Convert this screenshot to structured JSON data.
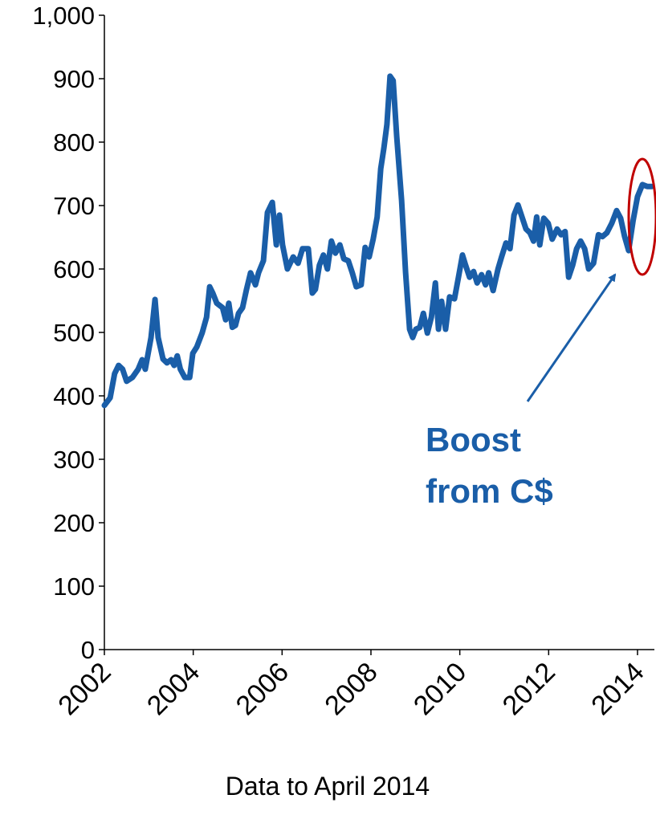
{
  "chart_data": {
    "type": "line",
    "x_label": "Data to April 2014",
    "annotation": [
      "Boost",
      "from C$"
    ],
    "xlim": [
      2002,
      2014.38
    ],
    "xticks": [
      2002,
      2004,
      2006,
      2008,
      2010,
      2012,
      2014
    ],
    "ylim": [
      0,
      1000
    ],
    "yticks": [
      0,
      100,
      200,
      300,
      400,
      500,
      600,
      700,
      800,
      900,
      {
        "value": 1000,
        "label": "1,000"
      }
    ],
    "grid": false,
    "series": [
      {
        "color": "#1a5ea8",
        "x": [
          2002.0,
          2002.13,
          2002.23,
          2002.32,
          2002.41,
          2002.5,
          2002.63,
          2002.76,
          2002.85,
          2002.92,
          2003.05,
          2003.14,
          2003.21,
          2003.32,
          2003.41,
          2003.5,
          2003.57,
          2003.64,
          2003.71,
          2003.81,
          2003.92,
          2003.99,
          2004.08,
          2004.2,
          2004.3,
          2004.37,
          2004.44,
          2004.53,
          2004.66,
          2004.73,
          2004.8,
          2004.88,
          2004.95,
          2005.02,
          2005.11,
          2005.2,
          2005.29,
          2005.4,
          2005.47,
          2005.58,
          2005.67,
          2005.78,
          2005.87,
          2005.94,
          2006.01,
          2006.12,
          2006.25,
          2006.36,
          2006.46,
          2006.59,
          2006.68,
          2006.75,
          2006.84,
          2006.93,
          2007.02,
          2007.11,
          2007.2,
          2007.3,
          2007.39,
          2007.49,
          2007.58,
          2007.67,
          2007.78,
          2007.87,
          2007.96,
          2008.05,
          2008.14,
          2008.22,
          2008.29,
          2008.36,
          2008.43,
          2008.5,
          2008.58,
          2008.69,
          2008.78,
          2008.87,
          2008.94,
          2009.01,
          2009.1,
          2009.18,
          2009.27,
          2009.36,
          2009.45,
          2009.52,
          2009.59,
          2009.68,
          2009.77,
          2009.88,
          2009.97,
          2010.06,
          2010.13,
          2010.22,
          2010.31,
          2010.39,
          2010.49,
          2010.58,
          2010.65,
          2010.75,
          2010.86,
          2010.94,
          2011.04,
          2011.13,
          2011.22,
          2011.31,
          2011.4,
          2011.49,
          2011.58,
          2011.66,
          2011.73,
          2011.8,
          2011.89,
          2011.99,
          2012.08,
          2012.19,
          2012.28,
          2012.37,
          2012.45,
          2012.54,
          2012.63,
          2012.72,
          2012.81,
          2012.9,
          2013.01,
          2013.12,
          2013.21,
          2013.31,
          2013.42,
          2013.53,
          2013.62,
          2013.71,
          2013.8,
          2013.9,
          2014.0,
          2014.11,
          2014.22,
          2014.32
        ],
        "values": [
          385,
          397,
          435,
          448,
          442,
          423,
          429,
          442,
          457,
          442,
          492,
          552,
          492,
          458,
          452,
          457,
          448,
          463,
          442,
          429,
          429,
          467,
          477,
          499,
          524,
          572,
          562,
          546,
          539,
          520,
          546,
          508,
          511,
          530,
          539,
          568,
          594,
          575,
          594,
          613,
          689,
          705,
          638,
          685,
          638,
          600,
          619,
          609,
          632,
          632,
          562,
          568,
          606,
          622,
          600,
          644,
          625,
          638,
          616,
          613,
          594,
          572,
          575,
          634,
          619,
          647,
          682,
          758,
          790,
          828,
          904,
          897,
          809,
          708,
          594,
          505,
          492,
          505,
          508,
          530,
          499,
          524,
          578,
          505,
          549,
          505,
          556,
          553,
          587,
          622,
          606,
          587,
          596,
          578,
          591,
          575,
          594,
          566,
          600,
          619,
          641,
          632,
          685,
          701,
          682,
          663,
          657,
          644,
          682,
          638,
          680,
          672,
          647,
          663,
          654,
          659,
          587,
          606,
          632,
          644,
          632,
          600,
          609,
          654,
          651,
          657,
          672,
          692,
          680,
          651,
          629,
          676,
          714,
          733,
          730,
          730
        ]
      }
    ]
  }
}
